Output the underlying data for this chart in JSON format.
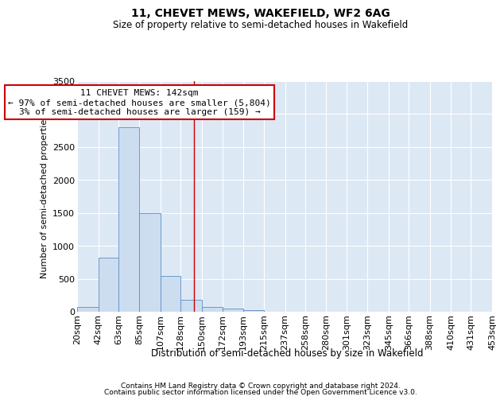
{
  "title": "11, CHEVET MEWS, WAKEFIELD, WF2 6AG",
  "subtitle": "Size of property relative to semi-detached houses in Wakefield",
  "xlabel": "Distribution of semi-detached houses by size in Wakefield",
  "ylabel": "Number of semi-detached properties",
  "property_size": 142,
  "annotation_line1": "11 CHEVET MEWS: 142sqm",
  "annotation_line2": "← 97% of semi-detached houses are smaller (5,804)",
  "annotation_line3": "3% of semi-detached houses are larger (159) →",
  "footer_line1": "Contains HM Land Registry data © Crown copyright and database right 2024.",
  "footer_line2": "Contains public sector information licensed under the Open Government Licence v3.0.",
  "bin_edges": [
    20,
    42,
    63,
    85,
    107,
    128,
    150,
    172,
    193,
    215,
    237,
    258,
    280,
    301,
    323,
    345,
    366,
    388,
    410,
    431,
    453
  ],
  "bar_heights": [
    75,
    820,
    2800,
    1500,
    540,
    185,
    70,
    45,
    30,
    0,
    0,
    0,
    0,
    0,
    0,
    0,
    0,
    0,
    0,
    0
  ],
  "bar_color": "#ccddf0",
  "bar_edge_color": "#5b8ec4",
  "line_color": "#cc0000",
  "annotation_box_edgecolor": "#cc0000",
  "background_color": "#dde8f5",
  "grid_color": "#ffffff",
  "ylim": [
    0,
    3500
  ],
  "ytick_step": 500,
  "title_fontsize": 10,
  "subtitle_fontsize": 8.5,
  "annotation_fontsize": 8,
  "tick_fontsize": 8,
  "ylabel_fontsize": 8,
  "xlabel_fontsize": 8.5,
  "footer_fontsize": 6.5
}
